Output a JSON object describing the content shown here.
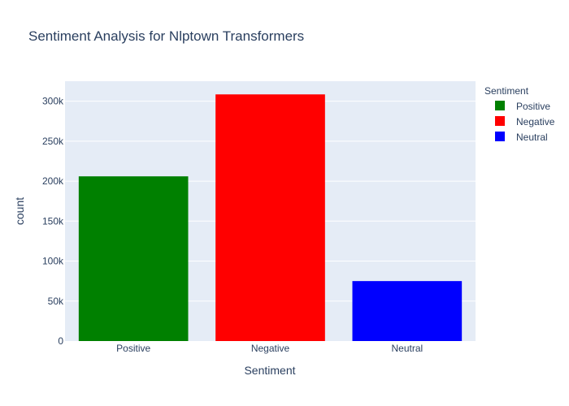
{
  "chart_data": {
    "type": "bar",
    "title": "Sentiment Analysis for Nlptown Transformers",
    "xlabel": "Sentiment",
    "ylabel": "count",
    "categories": [
      "Positive",
      "Negative",
      "Neutral"
    ],
    "values": [
      206000,
      308500,
      75000
    ],
    "colors": [
      "#008000",
      "#ff0000",
      "#0000ff"
    ],
    "ylim": [
      0,
      325000
    ],
    "yticks": [
      0,
      50000,
      100000,
      150000,
      200000,
      250000,
      300000
    ],
    "ytick_labels": [
      "0",
      "50k",
      "100k",
      "150k",
      "200k",
      "250k",
      "300k"
    ],
    "grid": true,
    "legend": {
      "title": "Sentiment",
      "position": "top-right",
      "items": [
        "Positive",
        "Negative",
        "Neutral"
      ]
    },
    "plot_background": "#e5ecf6"
  }
}
